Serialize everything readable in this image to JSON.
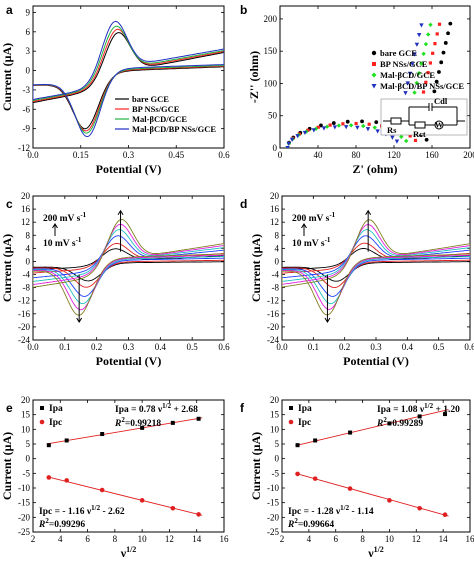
{
  "panels": [
    {
      "label": "a",
      "type": "line",
      "xlabel": "Potential (V)",
      "ylabel": "Current (μA)",
      "xlim": [
        0,
        0.6
      ],
      "ylim": [
        -12,
        10
      ],
      "xticks": [
        "0.0",
        "0.15",
        "0.3",
        "0.45",
        "0.6"
      ],
      "xtick_values": [
        0,
        0.15,
        0.3,
        0.45,
        0.6
      ],
      "yticks": [
        "-12",
        "-9",
        "-6",
        "-3",
        "0",
        "3",
        "6",
        "9"
      ],
      "ytick_values": [
        -12,
        -9,
        -6,
        -3,
        0,
        3,
        6,
        9
      ],
      "legend": [
        "bare GCE",
        "BP NSs/GCE",
        "Mal-βCD/GCE",
        "Mal-βCD/BP NSs/GCE"
      ],
      "colors": [
        "#000000",
        "#ff2020",
        "#20b040",
        "#2030c0"
      ],
      "cv": [
        {
          "amp": 7.2,
          "epa": 0.265,
          "epc": 0.165,
          "e0": 0.22,
          "start": -6.2
        },
        {
          "amp": 7.6,
          "epa": 0.262,
          "epc": 0.168,
          "e0": 0.22,
          "start": -6.0
        },
        {
          "amp": 8.0,
          "epa": 0.258,
          "epc": 0.17,
          "e0": 0.22,
          "start": -5.8
        },
        {
          "amp": 8.6,
          "epa": 0.255,
          "epc": 0.172,
          "e0": 0.22,
          "start": -5.6
        }
      ]
    },
    {
      "label": "b",
      "type": "scatter",
      "xlabel": "Z' (ohm)",
      "ylabel": "-Z'' (ohm)",
      "xlim": [
        0,
        200
      ],
      "ylim": [
        0,
        220
      ],
      "xticks": [
        "0",
        "40",
        "80",
        "120",
        "160",
        "200"
      ],
      "xtick_values": [
        0,
        40,
        80,
        120,
        160,
        200
      ],
      "yticks": [
        "0",
        "50",
        "100",
        "150",
        "200"
      ],
      "ytick_values": [
        0,
        50,
        100,
        150,
        200
      ],
      "legend": [
        "bare GCE",
        "BP NSs/GCE",
        "Mal-βCD/GCE",
        "Mal-βCD/BP NSs/GCE"
      ],
      "colors": [
        "#000000",
        "#ff2020",
        "#20e020",
        "#2030c0"
      ],
      "nyquist": [
        {
          "r0": 8,
          "rct": 150
        },
        {
          "r0": 8,
          "rct": 138
        },
        {
          "r0": 8,
          "rct": 128
        },
        {
          "r0": 8,
          "rct": 118
        }
      ],
      "circuit": {
        "rs": "Rs",
        "rct": "Rct",
        "cdl": "Cdl",
        "w": "W"
      }
    },
    {
      "label": "c",
      "type": "line",
      "xlabel": "Potential (V)",
      "ylabel": "Current (μA)",
      "xlim": [
        0,
        0.6
      ],
      "ylim": [
        -24,
        20
      ],
      "xticks": [
        "0.0",
        "0.1",
        "0.2",
        "0.3",
        "0.4",
        "0.5",
        "0.6"
      ],
      "xtick_values": [
        0,
        0.1,
        0.2,
        0.3,
        0.4,
        0.5,
        0.6
      ],
      "yticks": [
        "-24",
        "-20",
        "-16",
        "-12",
        "-8",
        "-4",
        "0",
        "4",
        "8",
        "12",
        "16",
        "20"
      ],
      "ytick_values": [
        -24,
        -20,
        -16,
        -12,
        -8,
        -4,
        0,
        4,
        8,
        12,
        16,
        20
      ],
      "annot_top": "200 mV s",
      "annot_bottom": "10 mV s",
      "annot_sup": "-1",
      "scan_amps": [
        4.5,
        6.3,
        8.9,
        10.9,
        12.6,
        14.1
      ],
      "colors": [
        "#000000",
        "#e02020",
        "#2040ff",
        "#20c0c0",
        "#e020e0",
        "#808020"
      ]
    },
    {
      "label": "d",
      "type": "line",
      "xlabel": "Potential (V)",
      "ylabel": "Current (μA)",
      "xlim": [
        0,
        0.6
      ],
      "ylim": [
        -24,
        20
      ],
      "xticks": [
        "0.0",
        "0.1",
        "0.2",
        "0.3",
        "0.4",
        "0.5",
        "0.6"
      ],
      "xtick_values": [
        0,
        0.1,
        0.2,
        0.3,
        0.4,
        0.5,
        0.6
      ],
      "yticks": [
        "-24",
        "-20",
        "-16",
        "-12",
        "-8",
        "-4",
        "0",
        "4",
        "8",
        "12",
        "16",
        "20"
      ],
      "ytick_values": [
        -24,
        -20,
        -16,
        -12,
        -8,
        -4,
        0,
        4,
        8,
        12,
        16,
        20
      ],
      "annot_top": "200 mV s",
      "annot_bottom": "10 mV s",
      "annot_sup": "-1",
      "scan_amps": [
        4.6,
        6.4,
        8.9,
        10.9,
        12.5,
        14.0
      ],
      "colors": [
        "#000000",
        "#e02020",
        "#2040ff",
        "#20c0c0",
        "#e020e0",
        "#808020"
      ]
    },
    {
      "label": "e",
      "type": "scatter",
      "xlabel": "ν",
      "xlabel_sup": "1/2",
      "ylabel": "Current (μA)",
      "xlim": [
        2,
        16
      ],
      "ylim": [
        -25,
        20
      ],
      "xticks": [
        "2",
        "4",
        "6",
        "8",
        "10",
        "12",
        "14",
        "16"
      ],
      "xtick_values": [
        2,
        4,
        6,
        8,
        10,
        12,
        14,
        16
      ],
      "yticks": [
        "-25",
        "-20",
        "-15",
        "-10",
        "-5",
        "0",
        "5",
        "10",
        "15",
        "20"
      ],
      "ytick_values": [
        -25,
        -20,
        -15,
        -10,
        -5,
        0,
        5,
        10,
        15,
        20
      ],
      "x": [
        3.16,
        4.47,
        7.07,
        10.0,
        12.25,
        14.14
      ],
      "series": [
        {
          "name": "Ipa",
          "values": [
            4.6,
            6.2,
            8.4,
            10.5,
            12.2,
            13.6
          ],
          "slope": 0.78,
          "intercept": 2.68
        },
        {
          "name": "Ipc",
          "values": [
            -6.4,
            -7.4,
            -10.7,
            -14.2,
            -16.9,
            -19.0
          ],
          "slope": -1.16,
          "intercept": -2.62
        }
      ],
      "eq_top": "Ipa = 0.78 ν",
      "eq_top_tail": " + 2.68",
      "r2_top": "=0.99218",
      "eq_bottom": "Ipc = - 1.16 ν",
      "eq_bottom_tail": " - 2.62",
      "r2_bottom": "=0.99296",
      "sup_half": "1/2",
      "r2_label": "R",
      "r2_sup": "2"
    },
    {
      "label": "f",
      "type": "scatter",
      "xlabel": "ν",
      "xlabel_sup": "1/2",
      "ylabel": "Current (μA)",
      "xlim": [
        2,
        16
      ],
      "ylim": [
        -25,
        20
      ],
      "xticks": [
        "2",
        "4",
        "6",
        "8",
        "10",
        "12",
        "14",
        "16"
      ],
      "xtick_values": [
        2,
        4,
        6,
        8,
        10,
        12,
        14,
        16
      ],
      "yticks": [
        "-25",
        "-20",
        "-15",
        "-10",
        "-5",
        "0",
        "5",
        "10",
        "15",
        "20"
      ],
      "ytick_values": [
        -25,
        -20,
        -15,
        -10,
        -5,
        0,
        5,
        10,
        15,
        20
      ],
      "x": [
        3.16,
        4.47,
        7.07,
        10.0,
        12.25,
        14.14
      ],
      "series": [
        {
          "name": "Ipa",
          "values": [
            4.6,
            6.2,
            8.9,
            12.0,
            14.4,
            15.2
          ],
          "slope": 1.08,
          "intercept": 1.2
        },
        {
          "name": "Ipc",
          "values": [
            -5.2,
            -6.8,
            -10.2,
            -14.2,
            -16.9,
            -19.1
          ],
          "slope": -1.28,
          "intercept": -1.14
        }
      ],
      "eq_top": "Ipa = 1.08 ν",
      "eq_top_tail": " + 1.20",
      "r2_top": "=0.99289",
      "eq_bottom": "Ipc = - 1.28 ν",
      "eq_bottom_tail": " - 1.14",
      "r2_bottom": "=0.99664",
      "sup_half": "1/2",
      "r2_label": "R",
      "r2_sup": "2"
    }
  ],
  "marker_colors": {
    "ipa": "#000000",
    "ipc": "#e02020",
    "fit": "#e02020"
  }
}
